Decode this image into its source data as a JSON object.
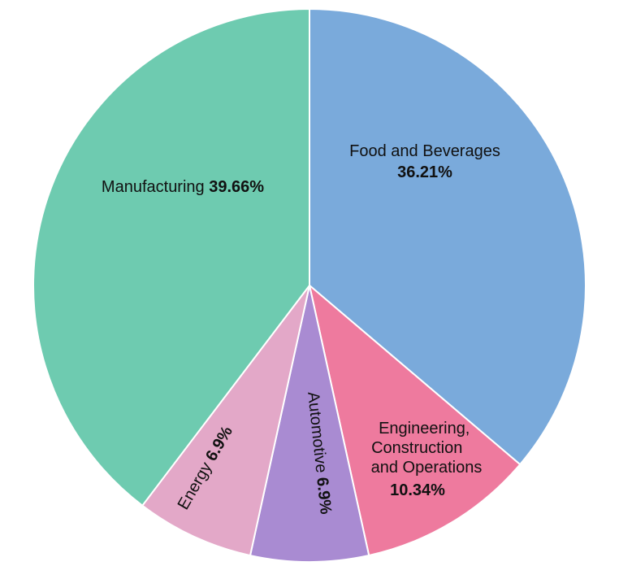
{
  "chart_data": {
    "type": "pie",
    "title": "",
    "categories": [
      "Food and Beverages",
      "Engineering, Construction and Operations",
      "Automotive",
      "Energy",
      "Manufacturing"
    ],
    "values": [
      36.21,
      10.34,
      6.9,
      6.9,
      39.66
    ],
    "value_labels": [
      "36.21%",
      "10.34%",
      "6.9%",
      "6.9%",
      "39.66%"
    ],
    "colors": [
      "#7aaadb",
      "#ee7a9e",
      "#a98bd2",
      "#e3a8c8",
      "#6ecbb0"
    ],
    "start_angle_deg": 0,
    "direction": "clockwise",
    "legend": "none",
    "labels_inside": true
  }
}
